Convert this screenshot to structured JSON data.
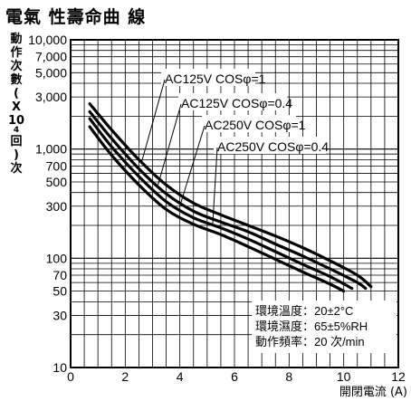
{
  "chart_data": {
    "type": "line",
    "title": "電氣 性壽命曲 線",
    "ylabel": [
      "動",
      "作",
      "次",
      "數",
      "(",
      "X",
      "10",
      "4",
      "回",
      ")",
      "次"
    ],
    "xlabel": "開閉電流 (A)",
    "xlim": [
      0,
      12
    ],
    "ylim": [
      10,
      10000
    ],
    "y_scale": "log",
    "x_ticks": [
      0,
      2,
      4,
      6,
      8,
      10,
      12
    ],
    "x_tick_labels": [
      "0",
      "2",
      "4",
      "6",
      "8",
      "10",
      "12"
    ],
    "y_ticks": [
      10,
      30,
      50,
      70,
      100,
      300,
      500,
      700,
      1000,
      3000,
      5000,
      7000,
      10000
    ],
    "y_tick_labels": [
      "10",
      "30",
      "50",
      "70",
      "100",
      "300",
      "500",
      "700",
      "1,000",
      "3,000",
      "5,000",
      "7,000",
      "10,000"
    ],
    "grid": true,
    "series": [
      {
        "name": "AC125V COSφ=1",
        "x": [
          0.7,
          1.5,
          2.5,
          3.5,
          4.5,
          5.5,
          6.5,
          7.5,
          8.5,
          9.5,
          10.5,
          11.0
        ],
        "y": [
          2600,
          1500,
          800,
          470,
          320,
          250,
          200,
          160,
          125,
          95,
          70,
          55
        ]
      },
      {
        "name": "AC125V COSφ=0.4",
        "x": [
          0.7,
          1.5,
          2.5,
          3.5,
          4.5,
          5.5,
          6.5,
          7.5,
          8.5,
          9.5,
          10.5,
          10.8
        ],
        "y": [
          2200,
          1250,
          660,
          390,
          270,
          215,
          175,
          135,
          105,
          80,
          60,
          53
        ]
      },
      {
        "name": "AC250V COSφ=1",
        "x": [
          0.7,
          1.5,
          2.5,
          3.5,
          4.5,
          5.5,
          6.5,
          7.5,
          8.5,
          9.5,
          10.3
        ],
        "y": [
          1900,
          1050,
          560,
          330,
          235,
          190,
          150,
          115,
          88,
          68,
          53
        ]
      },
      {
        "name": "AC250V COSφ=0.4",
        "x": [
          0.7,
          1.5,
          2.5,
          3.5,
          4.5,
          5.5,
          6.5,
          7.5,
          8.5,
          9.5,
          10.0
        ],
        "y": [
          1600,
          880,
          470,
          280,
          205,
          165,
          128,
          98,
          75,
          58,
          50
        ]
      }
    ],
    "conditions": [
      "環境溫度：20±2°C",
      "環境濕度：65±5%RH",
      "動作頻率：20 次/min"
    ]
  }
}
